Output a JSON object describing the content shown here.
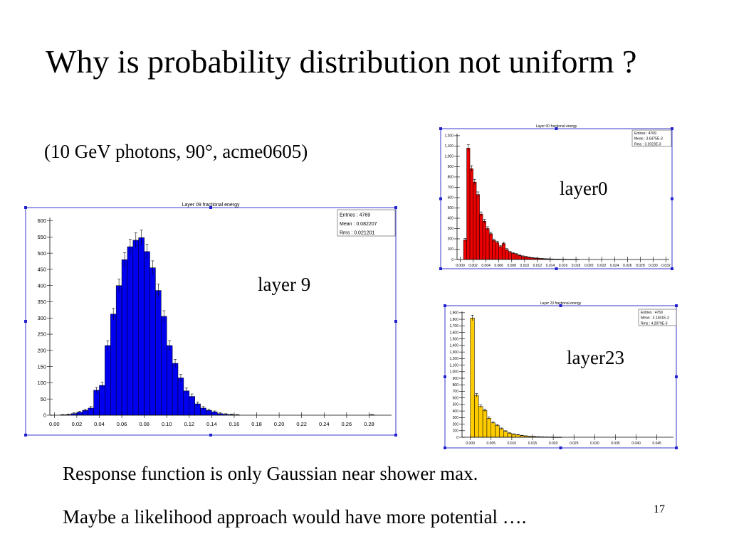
{
  "slide": {
    "title": "Why is probability distribution not uniform ?",
    "subtitle": "(10 GeV photons, 90°, acme0605)",
    "labels": {
      "layer9": "layer 9",
      "layer0": "layer0",
      "layer23": "layer23"
    },
    "bullets": [
      "Response function is only Gaussian near shower max.",
      "Maybe a likelihood approach would have more potential …."
    ],
    "page_number": "17"
  },
  "chart_data": [
    {
      "id": "layer9",
      "type": "bar",
      "title": "Layer 09 fractional energy",
      "color": "#0000ee",
      "stats": [
        "Entries :     4769",
        "Mean : 0.082207",
        "Rms :  0.021201"
      ],
      "xlim": [
        -0.004,
        0.3
      ],
      "ylim": [
        0,
        610
      ],
      "bin_start": 0.0,
      "bin_width": 0.005,
      "values": [
        0,
        1,
        2,
        5,
        9,
        15,
        22,
        77,
        92,
        215,
        312,
        400,
        480,
        520,
        540,
        548,
        505,
        455,
        385,
        305,
        215,
        160,
        115,
        75,
        58,
        35,
        22,
        15,
        10,
        5,
        3,
        2,
        1,
        0,
        0,
        0,
        0,
        0,
        0,
        0,
        0,
        0,
        0,
        0,
        0,
        0,
        0,
        0,
        0,
        0,
        0,
        0,
        0,
        0,
        0,
        0,
        1
      ],
      "xticks": [
        0.0,
        0.02,
        0.04,
        0.06,
        0.08,
        0.1,
        0.12,
        0.14,
        0.16,
        0.18,
        0.2,
        0.22,
        0.24,
        0.26,
        0.28
      ],
      "xtick_labels": [
        "0.00",
        "0.02",
        "0.04",
        "0.06",
        "0.08",
        "0.10",
        "0.12",
        "0.14",
        "0.16",
        "0.18",
        "0.20",
        "0.22",
        "0.24",
        "0.26",
        "0.28"
      ],
      "yticks": [
        0,
        50,
        100,
        150,
        200,
        250,
        300,
        350,
        400,
        450,
        500,
        550,
        600
      ],
      "ytick_labels": [
        "0",
        "50",
        "100",
        "150",
        "200",
        "250",
        "300",
        "350",
        "400",
        "450",
        "500",
        "550",
        "600"
      ]
    },
    {
      "id": "layer0",
      "type": "bar",
      "title": "Layer 00 fractional energy",
      "color": "#ee0000",
      "stats": [
        "Entries :        4769",
        "Mean : 3.6375E-3",
        "Rms :  3.2023E-3"
      ],
      "xlim": [
        -0.0005,
        0.0325
      ],
      "ylim": [
        0,
        1220
      ],
      "bin_start": 0.0005,
      "bin_width": 0.0005,
      "values": [
        190,
        1080,
        880,
        750,
        630,
        440,
        370,
        300,
        250,
        185,
        165,
        125,
        155,
        95,
        70,
        60,
        50,
        40,
        30,
        25,
        20,
        15,
        12,
        10,
        8,
        6,
        5,
        4,
        3,
        3,
        2,
        2,
        1,
        1,
        1,
        1
      ],
      "xticks": [
        0.0,
        0.002,
        0.004,
        0.006,
        0.008,
        0.01,
        0.012,
        0.014,
        0.016,
        0.018,
        0.02,
        0.022,
        0.024,
        0.026,
        0.028,
        0.03,
        0.032
      ],
      "xtick_labels": [
        "0.000",
        "0.002",
        "0.004",
        "0.006",
        "0.008",
        "0.010",
        "0.012",
        "0.014",
        "0.016",
        "0.018",
        "0.020",
        "0.022",
        "0.024",
        "0.026",
        "0.028",
        "0.030",
        "0.032"
      ],
      "yticks": [
        0,
        100,
        200,
        300,
        400,
        500,
        600,
        700,
        800,
        900,
        1000,
        1100,
        1200
      ],
      "ytick_labels": [
        "0",
        "100",
        "200",
        "300",
        "400",
        "500",
        "600",
        "700",
        "800",
        "900",
        "1,000",
        "1,100",
        "1,200"
      ]
    },
    {
      "id": "layer23",
      "type": "bar",
      "title": "Layer 23 fractional energy",
      "color": "#ffcc00",
      "stats": [
        "Entries :        4769",
        "Mean : 3.1461E-3",
        "Rms :  4.2979E-3"
      ],
      "xlim": [
        -0.002,
        0.049
      ],
      "ylim": [
        0,
        1920
      ],
      "bin_start": 0.0,
      "bin_width": 0.001,
      "values": [
        1820,
        640,
        470,
        410,
        290,
        220,
        180,
        130,
        90,
        60,
        45,
        35,
        25,
        18,
        12,
        9,
        6,
        4,
        3,
        2,
        1,
        1
      ],
      "xticks": [
        0.0,
        0.005,
        0.01,
        0.015,
        0.02,
        0.025,
        0.03,
        0.035,
        0.04,
        0.045
      ],
      "xtick_labels": [
        "0.000",
        "0.005",
        "0.010",
        "0.015",
        "0.020",
        "0.025",
        "0.030",
        "0.035",
        "0.040",
        "0.045"
      ],
      "yticks": [
        0,
        100,
        200,
        300,
        400,
        500,
        600,
        700,
        800,
        900,
        1000,
        1100,
        1200,
        1300,
        1400,
        1500,
        1600,
        1700,
        1800,
        1900
      ],
      "ytick_labels": [
        "0",
        "100",
        "200",
        "300",
        "400",
        "500",
        "600",
        "700",
        "800",
        "900",
        "1,000",
        "1,100",
        "1,200",
        "1,300",
        "1,400",
        "1,500",
        "1,600",
        "1,700",
        "1,800",
        "1,900"
      ]
    }
  ]
}
